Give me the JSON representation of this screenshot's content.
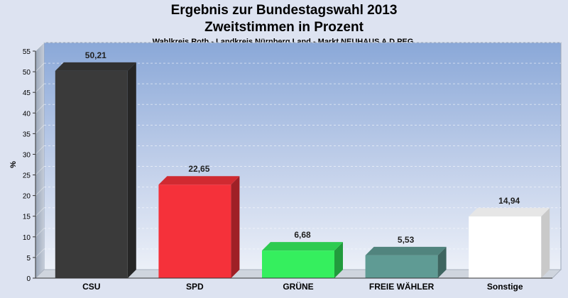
{
  "chart_data": {
    "type": "bar",
    "title": "Ergebnis zur Bundestagswahl 2013",
    "subtitle": "Zweitstimmen in Prozent",
    "caption": "Wahlkreis Roth - Landkreis Nürnberg Land - Markt NEUHAUS A.D.PEG.",
    "ylabel": "%",
    "xlabel": "",
    "ylim": [
      0,
      55
    ],
    "yticks": [
      "0",
      "5",
      "10",
      "15",
      "20",
      "25",
      "30",
      "35",
      "40",
      "45",
      "50",
      "55"
    ],
    "categories": [
      "CSU",
      "SPD",
      "GRÜNE",
      "FREIE WÄHLER",
      "Sonstige"
    ],
    "values": [
      50.21,
      22.65,
      6.68,
      5.53,
      14.94
    ],
    "value_labels": [
      "50,21",
      "22,65",
      "6,68",
      "5,53",
      "14,94"
    ],
    "colors": [
      "#3a3a3a",
      "#f5313a",
      "#35ef5e",
      "#5f9b94",
      "#ffffff"
    ],
    "grid": true,
    "legend": "none"
  }
}
